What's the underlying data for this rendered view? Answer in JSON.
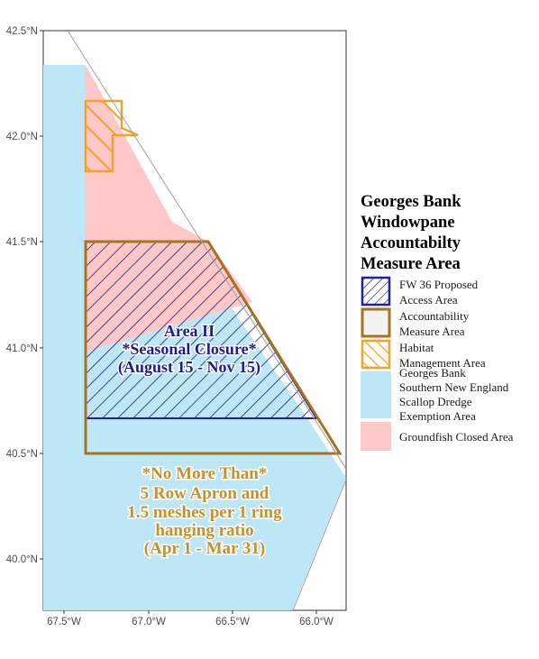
{
  "map": {
    "lat_ticks": [
      "42.5°N",
      "42.0°N",
      "41.5°N",
      "41.0°N",
      "40.5°N",
      "40.0°N"
    ],
    "lon_ticks": [
      "67.5°W",
      "67.0°W",
      "66.5°W",
      "66.0°W"
    ],
    "labels": {
      "area2": [
        "Area II",
        "*Seasonal Closure*",
        "(August 15 - Nov 15)"
      ],
      "apron": [
        "*No More Than*",
        "5 Row Apron and",
        "1.5 meshes per 1 ring",
        "hanging ratio",
        "(Apr 1 - Mar 31)"
      ]
    },
    "colors": {
      "exemption_fill": "#bde6f7",
      "closed_fill": "#ffc8c8",
      "access_stroke": "#1f1fa8",
      "am_stroke": "#a87320",
      "habitat_stroke": "#f0a22a"
    }
  },
  "legend": {
    "title": [
      "Georges Bank",
      "Windowpane",
      "Accountabilty",
      "Measure Area"
    ],
    "items": [
      {
        "lines": [
          "FW 36 Proposed",
          "Access Area"
        ],
        "swatch": "hatch-blue"
      },
      {
        "lines": [
          "Accountability",
          "Measure Area"
        ],
        "swatch": "outline-brown"
      },
      {
        "lines": [
          "Habitat",
          "Management Area"
        ],
        "swatch": "hatch-orange"
      },
      {
        "lines": [
          "Georges Bank",
          "Southern New England",
          "Scallop Dredge",
          "Exemption Area"
        ],
        "swatch": "fill-lightblue"
      },
      {
        "lines": [
          "Groundfish Closed Area"
        ],
        "swatch": "fill-pink"
      }
    ]
  }
}
